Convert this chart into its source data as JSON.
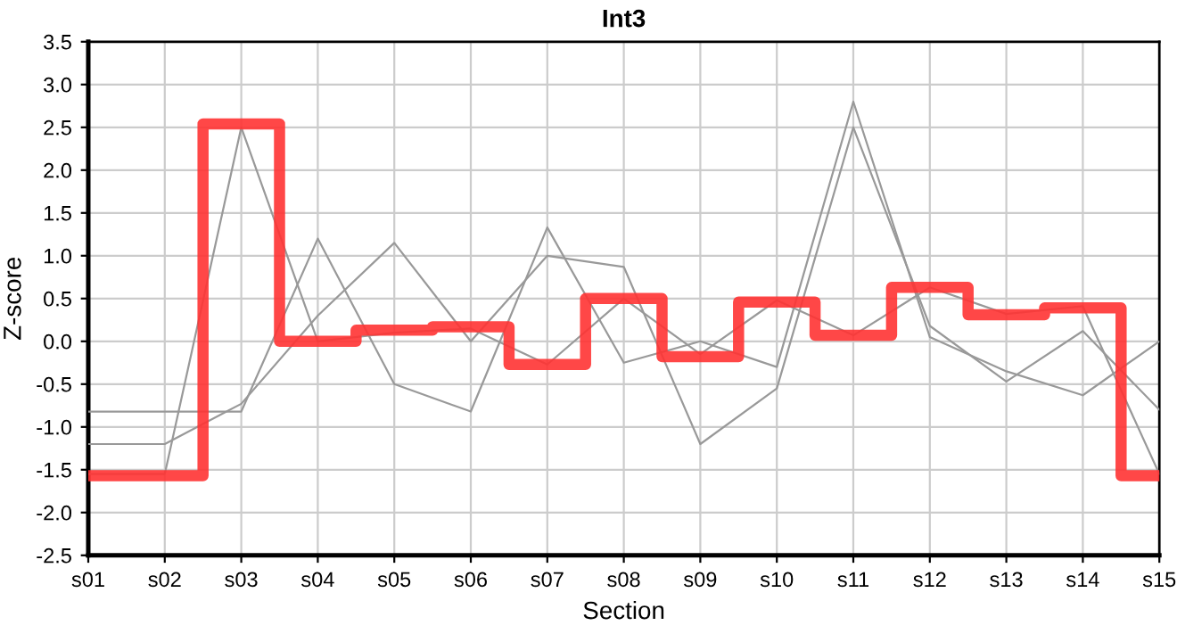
{
  "chart_data": {
    "type": "line",
    "title": "Int3",
    "xlabel": "Section",
    "ylabel": "Z-score",
    "categories": [
      "s01",
      "s02",
      "s03",
      "s04",
      "s05",
      "s06",
      "s07",
      "s08",
      "s09",
      "s10",
      "s11",
      "s12",
      "s13",
      "s14",
      "s15"
    ],
    "series": [
      {
        "color": "#999999",
        "values": [
          -1.55,
          -1.55,
          2.5,
          0.0,
          0.1,
          0.15,
          -0.27,
          0.5,
          -0.15,
          0.48,
          0.07,
          0.63,
          0.32,
          0.41,
          -1.55
        ]
      },
      {
        "color": "#999999",
        "values": [
          -1.2,
          -1.2,
          -0.73,
          0.3,
          1.15,
          0.0,
          1.0,
          0.87,
          -1.2,
          -0.55,
          2.5,
          0.18,
          -0.47,
          0.12,
          -0.8
        ]
      },
      {
        "color": "#999999",
        "values": [
          -0.82,
          -0.82,
          -0.82,
          1.2,
          -0.5,
          -0.82,
          1.33,
          -0.25,
          0.0,
          -0.3,
          2.8,
          0.05,
          -0.35,
          -0.63,
          0.0
        ]
      },
      {
        "type": "step",
        "color": "#ff3333",
        "values": [
          -1.57,
          -1.57,
          2.54,
          0.0,
          0.13,
          0.17,
          -0.27,
          0.5,
          -0.18,
          0.46,
          0.07,
          0.63,
          0.31,
          0.39,
          -1.57
        ]
      }
    ],
    "ylim": [
      -2.5,
      3.5
    ],
    "yticks": [
      {
        "value": -2.5,
        "label": "-2.5"
      },
      {
        "value": -2,
        "label": "-2.0"
      },
      {
        "value": -1.5,
        "label": "-1.5"
      },
      {
        "value": -1,
        "label": "-1.0"
      },
      {
        "value": -0.5,
        "label": "-0.5"
      },
      {
        "value": 0,
        "label": "0.0"
      },
      {
        "value": 0.5,
        "label": "0.5"
      },
      {
        "value": 1,
        "label": "1.0"
      },
      {
        "value": 1.5,
        "label": "1.5"
      },
      {
        "value": 2,
        "label": "2.0"
      },
      {
        "value": 2.5,
        "label": "2.5"
      },
      {
        "value": 3,
        "label": "3.0"
      },
      {
        "value": 3.5,
        "label": "3.5"
      }
    ],
    "grid": true
  }
}
